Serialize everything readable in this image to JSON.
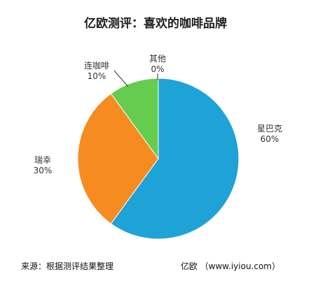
{
  "chart_data": {
    "type": "pie",
    "title": "亿欧测评：喜欢的咖啡品牌",
    "slices": [
      {
        "label": "星巴克",
        "value": 60,
        "value_label": "60%",
        "color": "#1fa3d7"
      },
      {
        "label": "瑞幸",
        "value": 30,
        "value_label": "30%",
        "color": "#f68b1f"
      },
      {
        "label": "连咖啡",
        "value": 10,
        "value_label": "10%",
        "color": "#66cc4f"
      },
      {
        "label": "其他",
        "value": 0,
        "value_label": "0%",
        "color": "#8ecf4f"
      }
    ],
    "legend": "none"
  },
  "footer": {
    "source": "来源：根据测评结果整理",
    "brand": "亿欧 （www.iyiou.com）"
  }
}
